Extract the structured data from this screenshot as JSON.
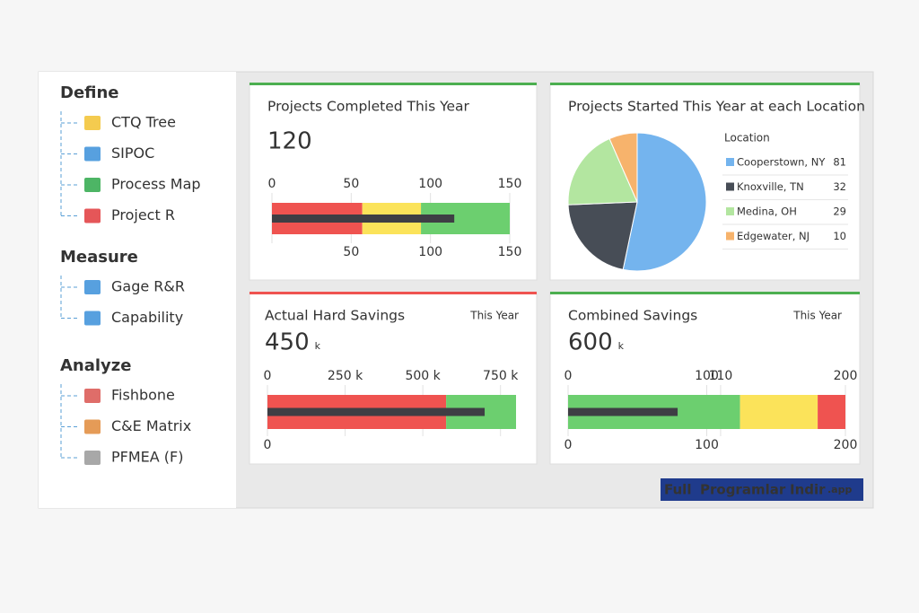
{
  "sidebar": {
    "sections": [
      {
        "title": "Define",
        "items": [
          "CTQ Tree",
          "SIPOC",
          "Process Map",
          "Project R"
        ]
      },
      {
        "title": "Measure",
        "items": [
          "Gage R&R",
          "Capability"
        ]
      },
      {
        "title": "Analyze",
        "items": [
          "Fishbone",
          "C&E Matrix",
          "PFMEA (F)"
        ]
      }
    ]
  },
  "chart_data": [
    {
      "type": "bullet",
      "title": "Projects Completed This Year",
      "value": 120,
      "accent": "#4caf50",
      "xlim": [
        0,
        150
      ],
      "ticks": [
        0,
        50,
        100,
        150
      ],
      "bottom_ticks": [
        50,
        100,
        150
      ],
      "bands": [
        57,
        37,
        56
      ],
      "band_colors": [
        "#ef5350",
        "#fbe35a",
        "#6ccf6f"
      ],
      "measure": 115,
      "measure_color": "#3e3e44"
    },
    {
      "type": "pie",
      "title": "Projects Started This Year at each Location",
      "legend_title": "Location",
      "accent": "#4caf50",
      "categories": [
        "Cooperstown, NY",
        "Knoxville, TN",
        "Medina, OH",
        "Edgewater, NJ"
      ],
      "values": [
        81,
        32,
        29,
        10
      ],
      "colors": [
        "#74b4ee",
        "#474d56",
        "#b3e6a0",
        "#f7b36c"
      ]
    },
    {
      "type": "bullet",
      "title": "Actual Hard Savings",
      "period": "This Year",
      "value": 450,
      "unit": "k",
      "accent": "#ef5350",
      "xlim": [
        0,
        800
      ],
      "ticks": [
        0,
        {
          "value": 250,
          "label": "250 k"
        },
        {
          "value": 500,
          "label": "500 k"
        },
        {
          "value": 750,
          "label": "750 k"
        }
      ],
      "bottom_ticks": [
        0
      ],
      "bands": [
        575,
        225
      ],
      "band_colors": [
        "#ef5350",
        "#6ccf6f"
      ],
      "measure": 699,
      "measure_color": "#3e3e44"
    },
    {
      "type": "bullet",
      "title": "Combined Savings",
      "period": "This Year",
      "value": 600,
      "unit": "k",
      "accent": "#4caf50",
      "xlim": [
        0,
        200
      ],
      "ticks": [
        0,
        100,
        110,
        200
      ],
      "bottom_ticks": [
        0,
        100,
        200
      ],
      "bands": [
        124,
        56,
        20
      ],
      "band_colors": [
        "#6ccf6f",
        "#fbe35a",
        "#ef5350"
      ],
      "measure": 79,
      "measure_color": "#3e3e44"
    }
  ],
  "watermark": [
    "Full",
    "Programlar",
    "Indir",
    ".app"
  ]
}
